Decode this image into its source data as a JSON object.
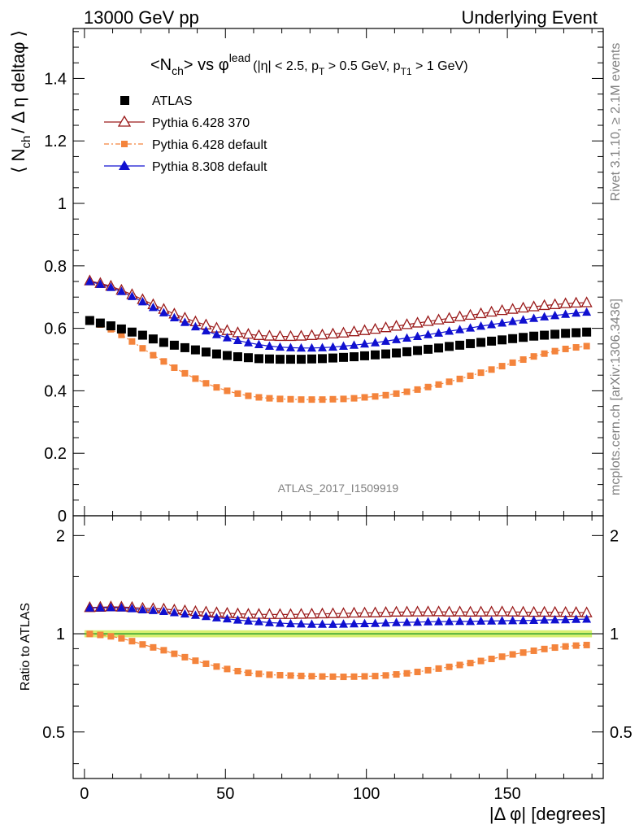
{
  "header": {
    "left": "13000 GeV pp",
    "right": "Underlying Event"
  },
  "side_labels": {
    "rivet": "Rivet 3.1.10, ≥ 2.1M events",
    "mcplots": "mcplots.cern.ch [arXiv:1306.3436]"
  },
  "watermark": "ATLAS_2017_I1509919",
  "plot_title": {
    "main": "<N",
    "main_sub": "ch",
    "main_rest": "> vs φ",
    "main_sup": "lead",
    "cuts_1": "(|η| < 2.5, p",
    "cuts_sub1": "T",
    "cuts_2": " > 0.5 GeV, p",
    "cuts_sub2": "T1",
    "cuts_3": " > 1 GeV)"
  },
  "y_label_main": {
    "pre": "⟨ N",
    "sub": "ch",
    "post": "/ Δ η deltaφ ⟩"
  },
  "y_label_ratio": "Ratio to ATLAS",
  "x_label": "|Δ φ| [degrees]",
  "legend": [
    {
      "label": "ATLAS"
    },
    {
      "label": "Pythia 6.428 370"
    },
    {
      "label": "Pythia 6.428 default"
    },
    {
      "label": "Pythia 8.308 default"
    }
  ],
  "chart_data": {
    "type": "scatter",
    "x_range": [
      -4,
      184
    ],
    "main_ylim": [
      0,
      1.56
    ],
    "ratio_ylim": [
      0.36,
      2.3
    ],
    "ratio_log": true,
    "x_ticks": [
      0,
      50,
      100,
      150
    ],
    "main_y_ticks": [
      0,
      0.2,
      0.4,
      0.6,
      0.8,
      1,
      1.2,
      1.4
    ],
    "main_y_tick_labels": [
      "0",
      "0.2",
      "0.4",
      "0.6",
      "0.8",
      "1",
      "1.2",
      "1.4"
    ],
    "ratio_y_ticks": [
      0.5,
      1,
      2
    ],
    "ratio_y_tick_labels": [
      "0.5",
      "1",
      "2"
    ],
    "colors": {
      "atlas": "#000000",
      "p6_370": "#9a1a1a",
      "p6_default": "#f4843c",
      "p8_default": "#1010d0",
      "band": "#d8f070",
      "ratio_line": "#30a030"
    },
    "series": [
      {
        "name": "ATLAS",
        "x": [
          1.875,
          5.625,
          9.375,
          13.125,
          16.875,
          20.625,
          24.375,
          28.125,
          31.875,
          35.625,
          39.375,
          43.125,
          46.875,
          50.625,
          54.375,
          58.125,
          61.875,
          65.625,
          69.375,
          73.125,
          76.875,
          80.625,
          84.375,
          88.125,
          91.875,
          95.625,
          99.375,
          103.125,
          106.875,
          110.625,
          114.375,
          118.125,
          121.875,
          125.625,
          129.375,
          133.125,
          136.875,
          140.625,
          144.375,
          148.125,
          151.875,
          155.625,
          159.375,
          163.125,
          166.875,
          170.625,
          174.375,
          178.125
        ],
        "y": [
          0.625,
          0.617,
          0.608,
          0.598,
          0.588,
          0.578,
          0.566,
          0.555,
          0.546,
          0.538,
          0.531,
          0.524,
          0.518,
          0.513,
          0.509,
          0.506,
          0.503,
          0.502,
          0.501,
          0.501,
          0.501,
          0.502,
          0.503,
          0.505,
          0.507,
          0.509,
          0.512,
          0.515,
          0.518,
          0.521,
          0.525,
          0.529,
          0.533,
          0.537,
          0.542,
          0.546,
          0.551,
          0.555,
          0.559,
          0.563,
          0.567,
          0.571,
          0.575,
          0.578,
          0.581,
          0.584,
          0.586,
          0.588
        ]
      },
      {
        "name": "Pythia 6.428 370",
        "x": [
          1.875,
          5.625,
          9.375,
          13.125,
          16.875,
          20.625,
          24.375,
          28.125,
          31.875,
          35.625,
          39.375,
          43.125,
          46.875,
          50.625,
          54.375,
          58.125,
          61.875,
          65.625,
          69.375,
          73.125,
          76.875,
          80.625,
          84.375,
          88.125,
          91.875,
          95.625,
          99.375,
          103.125,
          106.875,
          110.625,
          114.375,
          118.125,
          121.875,
          125.625,
          129.375,
          133.125,
          136.875,
          140.625,
          144.375,
          148.125,
          151.875,
          155.625,
          159.375,
          163.125,
          166.875,
          170.625,
          174.375,
          178.125
        ],
        "y": [
          0.752,
          0.744,
          0.735,
          0.722,
          0.708,
          0.692,
          0.676,
          0.661,
          0.646,
          0.633,
          0.621,
          0.611,
          0.601,
          0.593,
          0.586,
          0.581,
          0.577,
          0.575,
          0.574,
          0.574,
          0.575,
          0.577,
          0.579,
          0.582,
          0.585,
          0.589,
          0.593,
          0.597,
          0.602,
          0.607,
          0.612,
          0.617,
          0.622,
          0.627,
          0.632,
          0.637,
          0.642,
          0.647,
          0.652,
          0.657,
          0.661,
          0.665,
          0.669,
          0.673,
          0.676,
          0.679,
          0.681,
          0.682
        ]
      },
      {
        "name": "Pythia 6.428 default",
        "x": [
          1.875,
          5.625,
          9.375,
          13.125,
          16.875,
          20.625,
          24.375,
          28.125,
          31.875,
          35.625,
          39.375,
          43.125,
          46.875,
          50.625,
          54.375,
          58.125,
          61.875,
          65.625,
          69.375,
          73.125,
          76.875,
          80.625,
          84.375,
          88.125,
          91.875,
          95.625,
          99.375,
          103.125,
          106.875,
          110.625,
          114.375,
          118.125,
          121.875,
          125.625,
          129.375,
          133.125,
          136.875,
          140.625,
          144.375,
          148.125,
          151.875,
          155.625,
          159.375,
          163.125,
          166.875,
          170.625,
          174.375,
          178.125
        ],
        "y": [
          0.624,
          0.612,
          0.597,
          0.579,
          0.558,
          0.536,
          0.514,
          0.494,
          0.474,
          0.456,
          0.439,
          0.424,
          0.411,
          0.4,
          0.391,
          0.384,
          0.379,
          0.376,
          0.374,
          0.373,
          0.372,
          0.372,
          0.372,
          0.373,
          0.374,
          0.376,
          0.379,
          0.382,
          0.386,
          0.391,
          0.397,
          0.404,
          0.412,
          0.42,
          0.429,
          0.438,
          0.448,
          0.458,
          0.468,
          0.479,
          0.49,
          0.5,
          0.51,
          0.519,
          0.527,
          0.534,
          0.539,
          0.543
        ]
      },
      {
        "name": "Pythia 8.308 default",
        "x": [
          1.875,
          5.625,
          9.375,
          13.125,
          16.875,
          20.625,
          24.375,
          28.125,
          31.875,
          35.625,
          39.375,
          43.125,
          46.875,
          50.625,
          54.375,
          58.125,
          61.875,
          65.625,
          69.375,
          73.125,
          76.875,
          80.625,
          84.375,
          88.125,
          91.875,
          95.625,
          99.375,
          103.125,
          106.875,
          110.625,
          114.375,
          118.125,
          121.875,
          125.625,
          129.375,
          133.125,
          136.875,
          140.625,
          144.375,
          148.125,
          151.875,
          155.625,
          159.375,
          163.125,
          166.875,
          170.625,
          174.375,
          178.125
        ],
        "y": [
          0.75,
          0.741,
          0.731,
          0.718,
          0.702,
          0.685,
          0.667,
          0.65,
          0.634,
          0.619,
          0.605,
          0.592,
          0.58,
          0.57,
          0.561,
          0.554,
          0.548,
          0.543,
          0.54,
          0.538,
          0.537,
          0.537,
          0.538,
          0.54,
          0.543,
          0.546,
          0.55,
          0.554,
          0.559,
          0.564,
          0.569,
          0.574,
          0.58,
          0.585,
          0.591,
          0.596,
          0.601,
          0.607,
          0.612,
          0.617,
          0.622,
          0.627,
          0.632,
          0.637,
          0.641,
          0.645,
          0.649,
          0.652
        ]
      }
    ]
  }
}
